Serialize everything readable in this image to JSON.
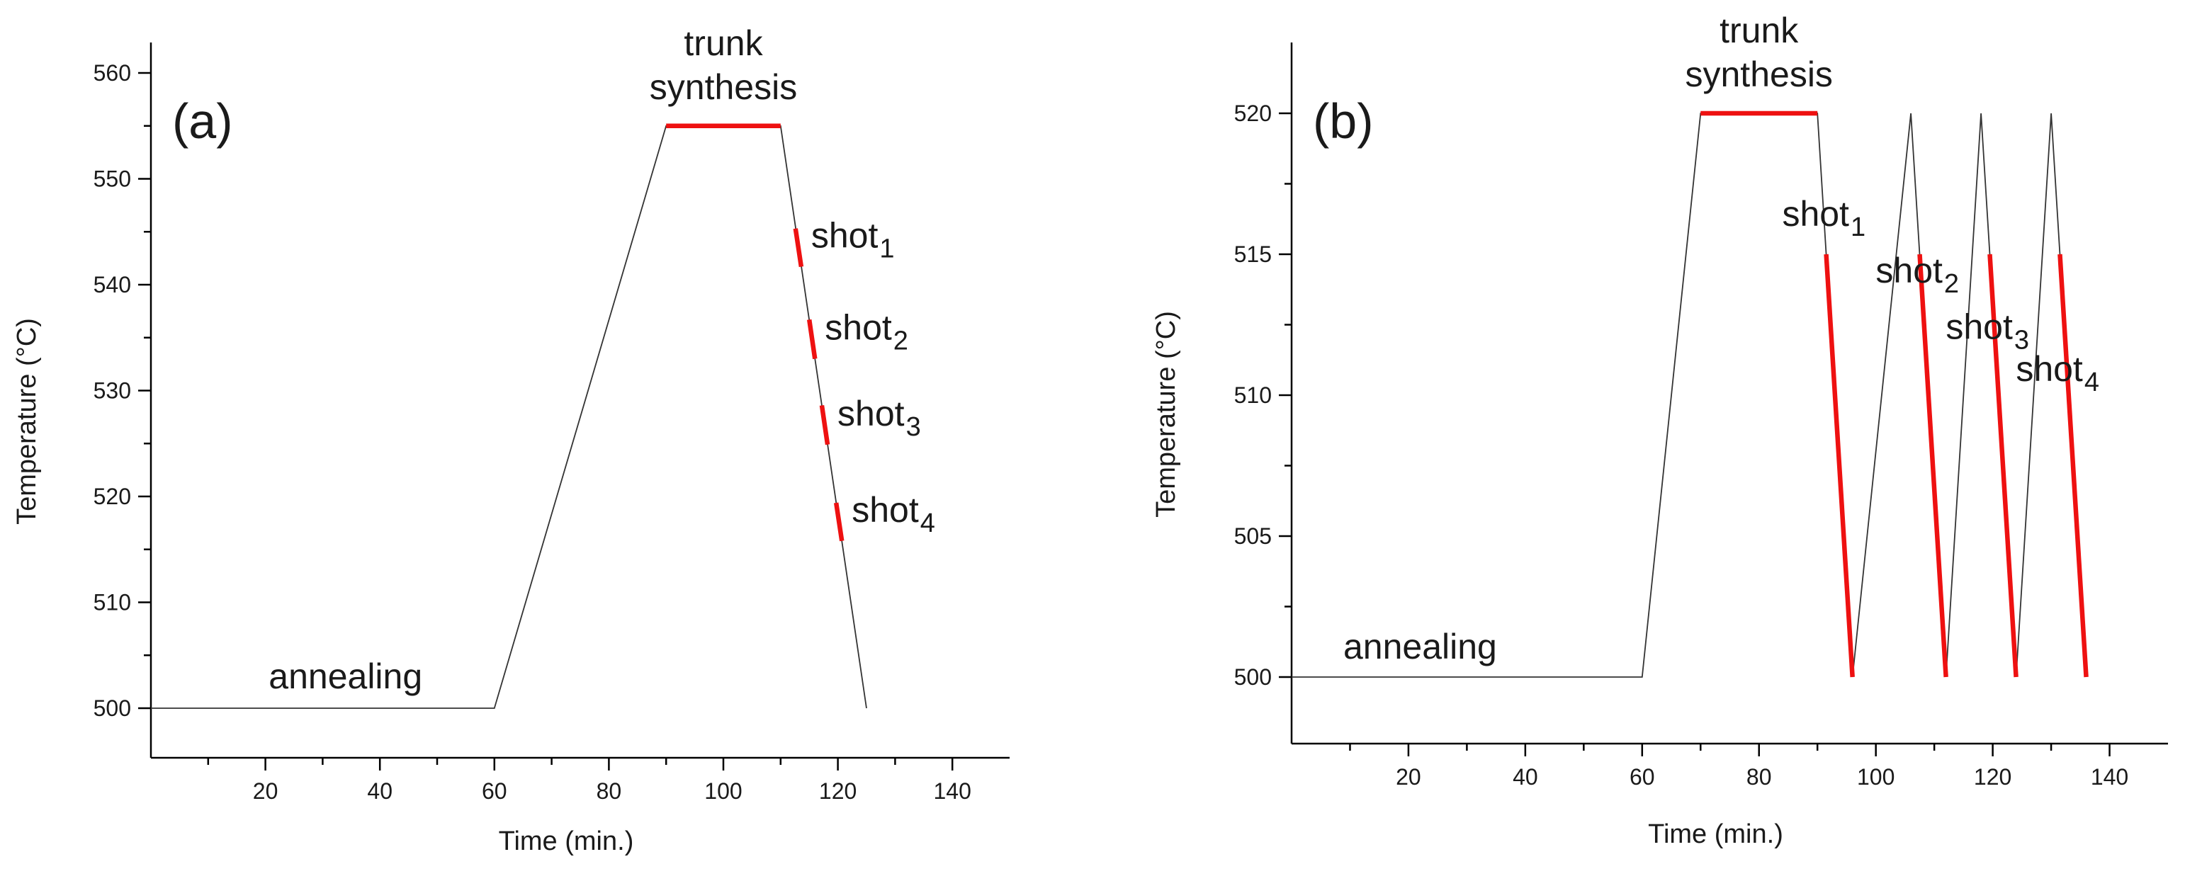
{
  "chart_data": [
    {
      "type": "line",
      "panel_label": "(a)",
      "xlabel": "Time (min.)",
      "ylabel": "Temperature (°C)",
      "xlim": [
        0,
        150
      ],
      "ylim": [
        497,
        562
      ],
      "xticks": [
        20,
        40,
        60,
        80,
        100,
        120,
        140
      ],
      "yticks": [
        500,
        510,
        520,
        530,
        540,
        550,
        560
      ],
      "grid": false,
      "profile": {
        "x": [
          0,
          60,
          90,
          110,
          125
        ],
        "y": [
          500,
          500,
          555,
          555,
          500
        ]
      },
      "highlights": [
        {
          "label": "trunk synthesis",
          "x": [
            90,
            110
          ],
          "y": [
            555,
            555
          ]
        },
        {
          "label": "shot1",
          "x": [
            112.6,
            113.6
          ],
          "y": [
            545.3,
            541.7
          ]
        },
        {
          "label": "shot2",
          "x": [
            115.0,
            116.0
          ],
          "y": [
            536.7,
            533.0
          ]
        },
        {
          "label": "shot3",
          "x": [
            117.2,
            118.2
          ],
          "y": [
            528.6,
            524.9
          ]
        },
        {
          "label": "shot4",
          "x": [
            119.7,
            120.7
          ],
          "y": [
            519.4,
            515.8
          ]
        }
      ],
      "annotations": [
        {
          "lines": [
            "trunk",
            "synthesis"
          ],
          "at": [
            100,
            555
          ]
        },
        {
          "text": "annealing",
          "at": [
            34,
            500
          ]
        },
        {
          "text": "shot",
          "sub": "1",
          "at": [
            113.6,
            543.5
          ]
        },
        {
          "text": "shot",
          "sub": "2",
          "at": [
            116.0,
            534.8
          ]
        },
        {
          "text": "shot",
          "sub": "3",
          "at": [
            118.2,
            526.7
          ]
        },
        {
          "text": "shot",
          "sub": "4",
          "at": [
            120.7,
            517.6
          ]
        }
      ]
    },
    {
      "type": "line",
      "panel_label": "(b)",
      "xlabel": "Time (min.)",
      "ylabel": "Temperature (°C)",
      "xlim": [
        0,
        150
      ],
      "ylim": [
        497.5,
        522.5
      ],
      "xticks": [
        20,
        40,
        60,
        80,
        100,
        120,
        140
      ],
      "yticks": [
        500,
        505,
        510,
        515,
        520
      ],
      "grid": false,
      "profile": {
        "x": [
          0,
          60,
          70,
          90,
          96,
          106,
          112,
          118,
          124,
          130,
          136
        ],
        "y": [
          500,
          500,
          520,
          520,
          500,
          520,
          500,
          520,
          500,
          520,
          500
        ]
      },
      "highlights": [
        {
          "label": "trunk synthesis",
          "x": [
            70,
            90
          ],
          "y": [
            520,
            520
          ]
        },
        {
          "label": "shot1",
          "x": [
            91.5,
            96
          ],
          "y": [
            515,
            500
          ]
        },
        {
          "label": "shot2",
          "x": [
            107.5,
            112
          ],
          "y": [
            515,
            500
          ]
        },
        {
          "label": "shot3",
          "x": [
            119.5,
            124
          ],
          "y": [
            515,
            500
          ]
        },
        {
          "label": "shot4",
          "x": [
            131.5,
            136
          ],
          "y": [
            515,
            500
          ]
        }
      ],
      "annotations": [
        {
          "lines": [
            "trunk",
            "synthesis"
          ],
          "at": [
            80,
            520
          ]
        },
        {
          "text": "annealing",
          "at": [
            22,
            500
          ]
        },
        {
          "text": "shot",
          "sub": "1",
          "at": [
            91,
            516
          ]
        },
        {
          "text": "shot",
          "sub": "2",
          "at": [
            107,
            514
          ]
        },
        {
          "text": "shot",
          "sub": "3",
          "at": [
            119,
            512
          ]
        },
        {
          "text": "shot",
          "sub": "4",
          "at": [
            131,
            510.5
          ]
        }
      ]
    }
  ]
}
